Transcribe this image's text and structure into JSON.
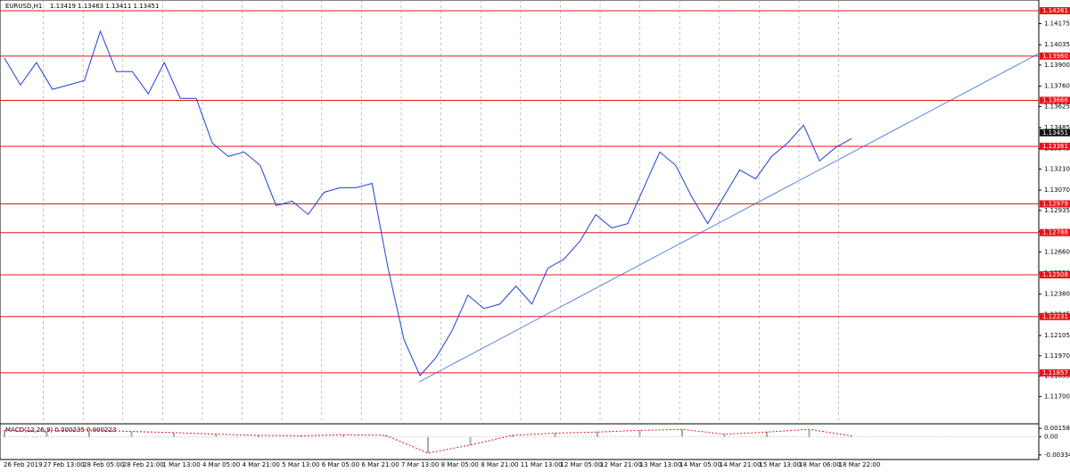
{
  "header": {
    "symbol": "EURUSD,H1",
    "ohlc": "1.13419 1.13463 1.13411 1.13451"
  },
  "price_chart": {
    "type": "line",
    "color": "#1f3fd1",
    "ylim": [
      1.11519,
      1.14332
    ],
    "yticks": [
      1.14175,
      1.14035,
      {
        "value": 1.139,
        "label": "1.13900"
      },
      {
        "value": 1.1376,
        "label": "1.13760"
      },
      1.13625,
      1.13485,
      1.13345,
      {
        "value": 1.1321,
        "label": "1.13210"
      },
      {
        "value": 1.1307,
        "label": "1.13070"
      },
      1.12935,
      1.12795,
      {
        "value": 1.1266,
        "label": "1.12660"
      },
      {
        "value": 1.1252,
        "label": "1.12520"
      },
      {
        "value": 1.1238,
        "label": "1.12380"
      },
      1.12245,
      1.12105,
      {
        "value": 1.1197,
        "label": "1.11970"
      },
      1.11835,
      {
        "value": 1.117,
        "label": "1.11700"
      }
    ],
    "levels": [
      1.14261,
      {
        "value": 1.1396,
        "label": "1.13960"
      },
      1.13666,
      1.13361,
      1.12979,
      1.12788,
      1.12508,
      1.12231,
      1.11857
    ],
    "level_color": "#e8141b",
    "current_price": 1.13451,
    "values": [
      1.13946,
      1.13768,
      1.13917,
      1.13739,
      1.13768,
      1.13798,
      1.14125,
      1.13857,
      1.13857,
      1.13709,
      1.13917,
      1.13679,
      1.13679,
      1.13383,
      1.13294,
      1.13323,
      1.13234,
      1.12967,
      1.12997,
      1.12908,
      1.13056,
      1.13086,
      1.13086,
      1.13115,
      1.12552,
      1.12077,
      1.11839,
      1.11958,
      1.12136,
      1.12373,
      1.12284,
      1.12314,
      1.12433,
      1.12314,
      1.12552,
      1.12611,
      1.1273,
      1.12908,
      1.12819,
      1.12848,
      1.13086,
      1.13323,
      1.13234,
      1.13026,
      1.12848,
      1.13026,
      1.13204,
      1.13145,
      1.13294,
      1.13383,
      1.13501,
      1.13264,
      1.13353,
      1.13412
    ]
  },
  "macd": {
    "type": "line",
    "label": "MACD(12,26,9) 0.000235 0.000223",
    "color": "#e8141b",
    "ylim": [
      -0.0042,
      0.00243
    ],
    "yticks": [
      0.00158,
      {
        "value": 0,
        "label": "0.00"
      },
      -0.003348
    ],
    "values": [
      0.0012,
      0.0011,
      0.0013,
      0.001,
      0.0008,
      0.0005,
      0.0003,
      0.0002,
      0.0004,
      0.0003,
      -0.003,
      -0.0015,
      0.0003,
      0.0007,
      0.0009,
      0.0012,
      0.0014,
      0.0005,
      0.0009,
      0.0014,
      0.0002
    ]
  },
  "time_axis": [
    "26 Feb 2019",
    "27 Feb 13:00",
    "28 Feb 05:00",
    "28 Feb 21:00",
    "1 Mar 13:00",
    "4 Mar 05:00",
    "4 Mar 21:00",
    "5 Mar 13:00",
    "6 Mar 05:00",
    "6 Mar 21:00",
    "7 Mar 13:00",
    "8 Mar 05:00",
    "8 Mar 21:00",
    "11 Mar 13:00",
    "12 Mar 05:00",
    "12 Mar 21:00",
    "13 Mar 13:00",
    "14 Mar 05:00",
    "14 Mar 21:00",
    "15 Mar 13:00",
    "18 Mar 06:00",
    "18 Mar 22:00"
  ]
}
